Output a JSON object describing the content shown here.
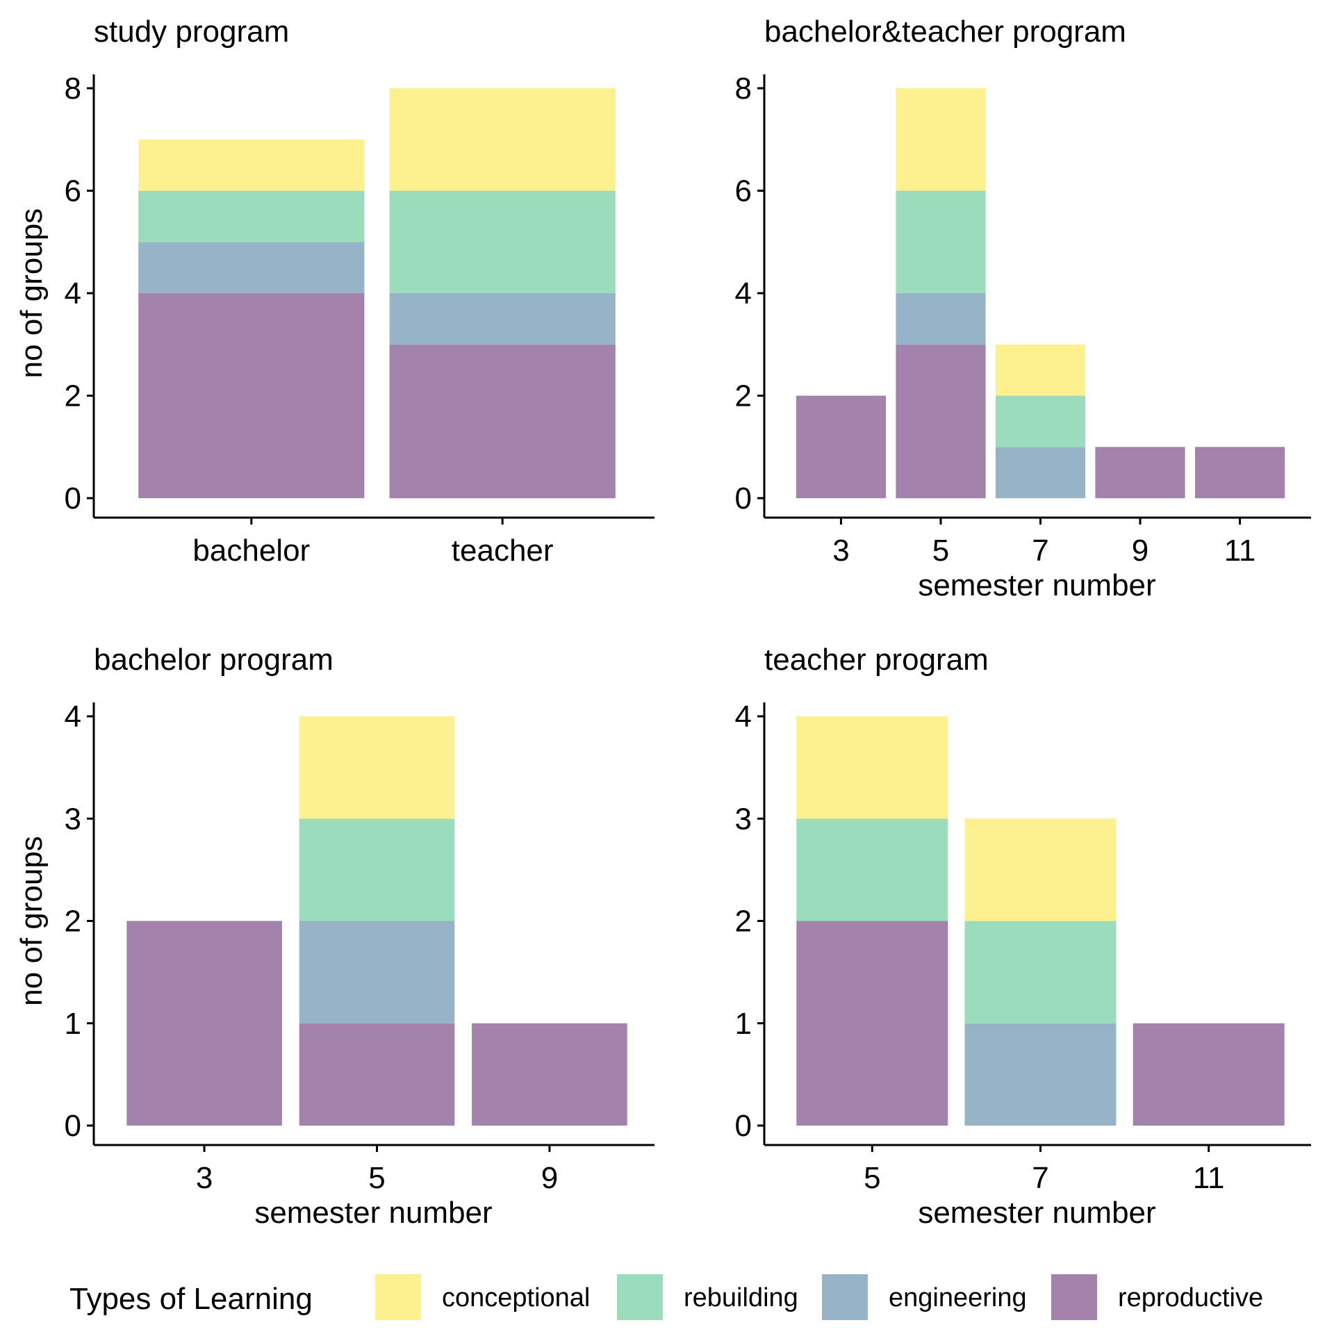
{
  "colors": {
    "conceptional": "#fdf08f",
    "rebuilding": "#9bdcbd",
    "engineering": "#97b3c7",
    "reproductive": "#a382ab"
  },
  "legend": {
    "title": "Types of  Learning",
    "items": [
      {
        "key": "conceptional",
        "label": "conceptional"
      },
      {
        "key": "rebuilding",
        "label": "rebuilding"
      },
      {
        "key": "engineering",
        "label": "engineering"
      },
      {
        "key": "reproductive",
        "label": "reproductive"
      }
    ]
  },
  "chart_data": [
    {
      "type": "bar",
      "stacked": true,
      "title": "study program",
      "xlabel": "",
      "ylabel": "no of groups",
      "ylim": [
        0,
        8
      ],
      "yticks": [
        0,
        2,
        4,
        6,
        8
      ],
      "categories": [
        "bachelor",
        "teacher"
      ],
      "series": [
        {
          "name": "reproductive",
          "values": [
            4,
            3
          ]
        },
        {
          "name": "engineering",
          "values": [
            1,
            1
          ]
        },
        {
          "name": "rebuilding",
          "values": [
            1,
            2
          ]
        },
        {
          "name": "conceptional",
          "values": [
            1,
            2
          ]
        }
      ]
    },
    {
      "type": "bar",
      "stacked": true,
      "title": "bachelor&teacher program",
      "xlabel": "semester number",
      "ylabel": "",
      "ylim": [
        0,
        8
      ],
      "yticks": [
        0,
        2,
        4,
        6,
        8
      ],
      "categories": [
        "3",
        "5",
        "7",
        "9",
        "11"
      ],
      "series": [
        {
          "name": "reproductive",
          "values": [
            2,
            3,
            0,
            1,
            1
          ]
        },
        {
          "name": "engineering",
          "values": [
            0,
            1,
            1,
            0,
            0
          ]
        },
        {
          "name": "rebuilding",
          "values": [
            0,
            2,
            1,
            0,
            0
          ]
        },
        {
          "name": "conceptional",
          "values": [
            0,
            2,
            1,
            0,
            0
          ]
        }
      ]
    },
    {
      "type": "bar",
      "stacked": true,
      "title": "bachelor program",
      "xlabel": "semester number",
      "ylabel": "no of groups",
      "ylim": [
        0,
        4
      ],
      "yticks": [
        0,
        1,
        2,
        3,
        4
      ],
      "categories": [
        "3",
        "5",
        "9"
      ],
      "series": [
        {
          "name": "reproductive",
          "values": [
            2,
            1,
            1
          ]
        },
        {
          "name": "engineering",
          "values": [
            0,
            1,
            0
          ]
        },
        {
          "name": "rebuilding",
          "values": [
            0,
            1,
            0
          ]
        },
        {
          "name": "conceptional",
          "values": [
            0,
            1,
            0
          ]
        }
      ]
    },
    {
      "type": "bar",
      "stacked": true,
      "title": "teacher program",
      "xlabel": "semester number",
      "ylabel": "",
      "ylim": [
        0,
        4
      ],
      "yticks": [
        0,
        1,
        2,
        3,
        4
      ],
      "categories": [
        "5",
        "7",
        "11"
      ],
      "series": [
        {
          "name": "reproductive",
          "values": [
            2,
            0,
            1
          ]
        },
        {
          "name": "engineering",
          "values": [
            0,
            1,
            0
          ]
        },
        {
          "name": "rebuilding",
          "values": [
            1,
            1,
            0
          ]
        },
        {
          "name": "conceptional",
          "values": [
            1,
            1,
            0
          ]
        }
      ]
    }
  ]
}
